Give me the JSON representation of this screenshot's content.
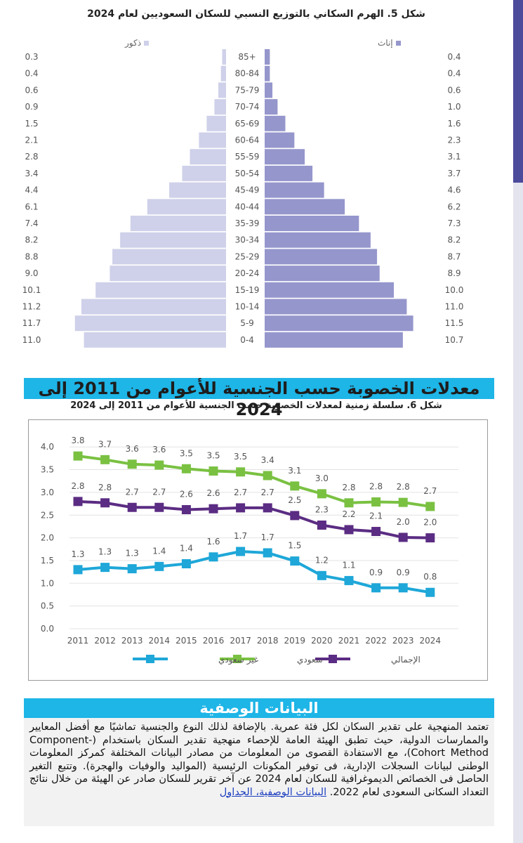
{
  "figure5": {
    "title": "شكل 5. الهرم السكاني بالتوزيع النسبي للسكان السعوديين لعام 2024",
    "legend_male": "ذكور",
    "legend_female": "إناث",
    "colors": {
      "male": "#cfd1ea",
      "female": "#9596cc"
    }
  },
  "section_banner": "معدلات الخصوبة حسب الجنسية للأعوام من 2011 إلى 2024",
  "figure6": {
    "title": "شكل 6. سلسلة زمنية لمعدلات الخصوبة حسب الجنسية للأعوام من 2011 إلى 2024",
    "legend": {
      "total": "الإجمالي",
      "saudi": "سعودي",
      "non_saudi": "غير سعودي"
    }
  },
  "description": {
    "heading": "البيانات الوصفية",
    "body": "تعتمد المنهجية على تقدير السكان لكل فئة عمرية. بالإضافة لذلك النوع والجنسية تماشيًا مع أفضل المعايير والممارسات الدولية، حيث تطبق الهيئة العامة للإحصاء منهجية تقدير السكان باستخدام (Component-Cohort Method)، مع الاستفادة القصوى من المعلومات من مصادر البيانات المختلفة كمركز المعلومات الوطنى لبيانات السجلات الإدارية، فى توفير المكونات الرئيسية (المواليد والوفيات والهجرة). وتتبع التغير الحاصل فى الخصائص الديموغرافية للسكان لعام 2024 عن آخر تقرير للسكان صادر عن الهيئة من خلال نتائج التعداد السكانى السعودى لعام 2022.",
    "links_label": "البيانات الوصفية، الجداول"
  },
  "chart_data": [
    {
      "type": "bar",
      "subtype": "population-pyramid",
      "title": "شكل 5. الهرم السكاني بالتوزيع النسبي للسكان السعوديين لعام 2024",
      "categories": [
        "85+",
        "80-84",
        "75-79",
        "70-74",
        "65-69",
        "60-64",
        "55-59",
        "50-54",
        "45-49",
        "40-44",
        "35-39",
        "30-34",
        "25-29",
        "20-24",
        "15-19",
        "10-14",
        "5-9",
        "0-4"
      ],
      "series": [
        {
          "name": "ذكور",
          "values": [
            0.3,
            0.4,
            0.6,
            0.9,
            1.5,
            2.1,
            2.8,
            3.4,
            4.4,
            6.1,
            7.4,
            8.2,
            8.8,
            9.0,
            10.1,
            11.2,
            11.7,
            11.0
          ]
        },
        {
          "name": "إناث",
          "values": [
            0.4,
            0.4,
            0.6,
            1.0,
            1.6,
            2.3,
            3.1,
            3.7,
            4.6,
            6.2,
            7.3,
            8.2,
            8.7,
            8.9,
            10.0,
            11.0,
            11.5,
            10.7
          ]
        }
      ],
      "unit": "%"
    },
    {
      "type": "line",
      "title": "شكل 6. سلسلة زمنية لمعدلات الخصوبة حسب الجنسية للأعوام من 2011 إلى 2024",
      "x": [
        "2011",
        "2012",
        "2013",
        "2014",
        "2015",
        "2016",
        "2017",
        "2018",
        "2019",
        "2020",
        "2021",
        "2022",
        "2023",
        "2024"
      ],
      "yticks": [
        "0.0",
        "0.5",
        "1.0",
        "1.5",
        "2.0",
        "2.5",
        "3.0",
        "3.5",
        "4.0"
      ],
      "ylim": [
        0,
        4.0
      ],
      "grid": true,
      "legend_position": "bottom",
      "series": [
        {
          "name": "سعودي",
          "color": "#7ac142",
          "values": [
            3.8,
            3.72,
            3.62,
            3.6,
            3.52,
            3.47,
            3.45,
            3.37,
            3.14,
            2.97,
            2.77,
            2.79,
            2.78,
            2.69
          ],
          "labels": [
            "3.8",
            "3.7",
            "3.6",
            "3.6",
            "3.5",
            "3.5",
            "3.5",
            "3.4",
            "3.1",
            "3.0",
            "2.8",
            "2.8",
            "2.8",
            "2.7"
          ]
        },
        {
          "name": "الإجمالي",
          "color": "#5b2c83",
          "values": [
            2.8,
            2.77,
            2.67,
            2.67,
            2.62,
            2.64,
            2.66,
            2.66,
            2.49,
            2.28,
            2.18,
            2.14,
            2.01,
            2.0
          ],
          "labels": [
            "2.8",
            "2.8",
            "2.7",
            "2.7",
            "2.6",
            "2.6",
            "2.7",
            "2.7",
            "2.5",
            "2.3",
            "2.2",
            "2.1",
            "2.0",
            "2.0"
          ]
        },
        {
          "name": "غير سعودي",
          "color": "#1ea7d8",
          "values": [
            1.3,
            1.35,
            1.32,
            1.37,
            1.43,
            1.58,
            1.7,
            1.67,
            1.49,
            1.17,
            1.06,
            0.9,
            0.9,
            0.8
          ],
          "labels": [
            "1.3",
            "1.3",
            "1.3",
            "1.4",
            "1.4",
            "1.6",
            "1.7",
            "1.7",
            "1.5",
            "1.2",
            "1.1",
            "0.9",
            "0.9",
            "0.8"
          ]
        }
      ]
    }
  ]
}
